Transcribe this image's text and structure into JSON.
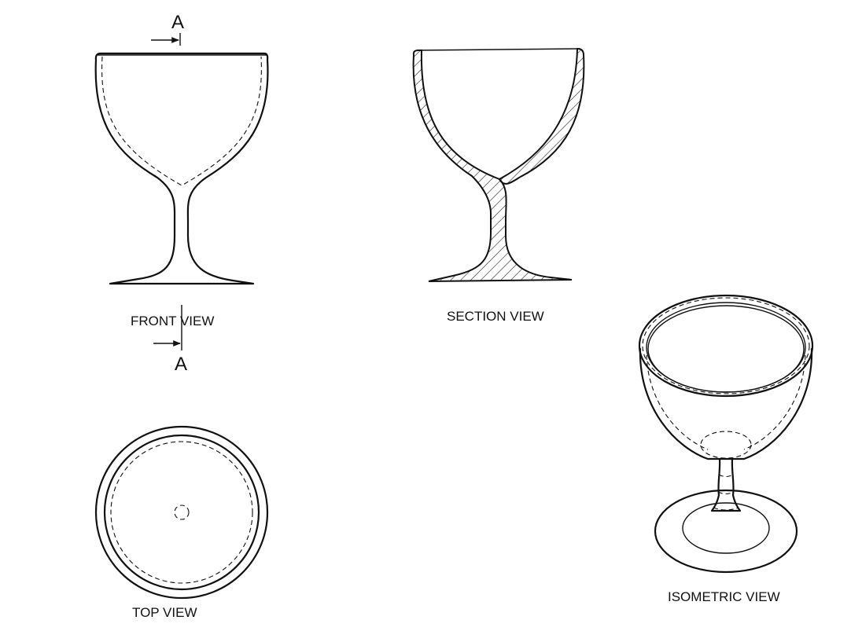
{
  "views": {
    "front": {
      "label": "FRONT VIEW"
    },
    "section": {
      "label": "SECTION  VIEW"
    },
    "top": {
      "label": "TOP VIEW"
    },
    "isometric": {
      "label": "ISOMETRIC  VIEW"
    }
  },
  "section_marker": {
    "top_letter": "A",
    "bottom_letter": "A"
  }
}
